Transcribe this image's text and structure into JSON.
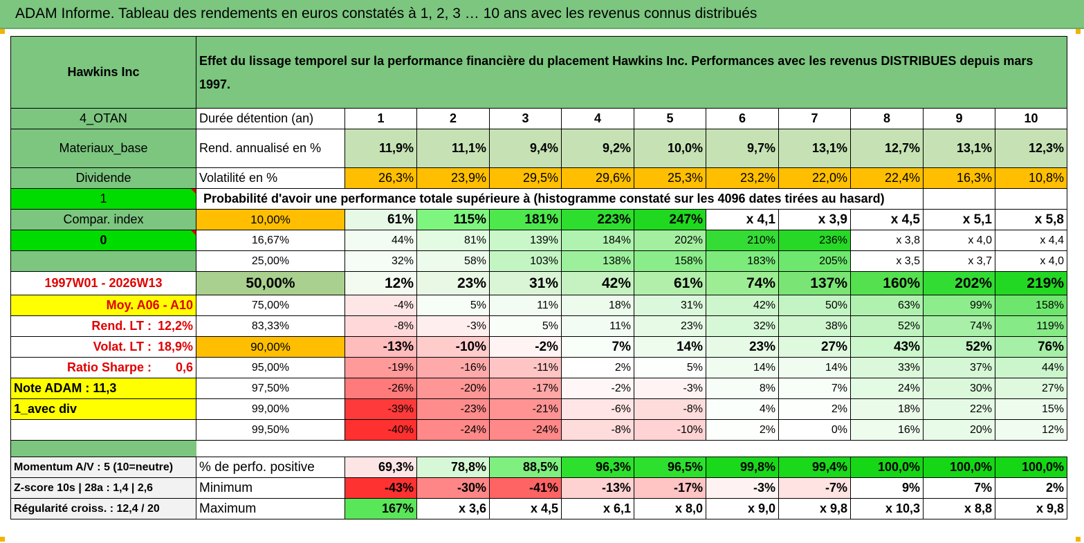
{
  "title": "ADAM Informe. Tableau des rendements en euros constatés à 1, 2, 3 … 10 ans avec les revenus connus distribués",
  "header": {
    "fund_name": "Hawkins Inc",
    "description": "Effet du lissage temporel sur la performance financière du placement Hawkins Inc. Performances avec les revenus DISTRIBUES depuis mars 1997."
  },
  "side": {
    "code": "4_OTAN",
    "sector": "Materiaux_base",
    "income_type": "Dividende",
    "flag_1": "1",
    "compar_index": "Compar. index",
    "flag_0": "0",
    "period": "1997W01 - 2026W13",
    "moy": "Moy. A06 - A10",
    "rend_lt_label": "Rend. LT :",
    "rend_lt_value": "12,2%",
    "volat_lt_label": "Volat. LT :",
    "volat_lt_value": "18,9%",
    "sharpe_label": "Ratio Sharpe :",
    "sharpe_value": "0,6",
    "note_adam": "Note ADAM : 11,3",
    "avec_div": "1_avec div",
    "momentum": "Momentum A/V : 5 (10=neutre)",
    "zscore": "Z-score 10s | 28a : 1,4 | 2,6",
    "regularite": "Régularité croiss. : 12,4 / 20"
  },
  "labels": {
    "duree": "Durée détention (an)",
    "rend": "Rend. annualisé en %",
    "vol": "Volatilité en %",
    "proba": "Probabilité d'avoir une performance totale supérieure à (histogramme constaté sur les 4096 dates tirées au hasard)",
    "perf_pos": "% de perfo. positive",
    "minimum": "Minimum",
    "maximum": "Maximum"
  },
  "years": [
    "1",
    "2",
    "3",
    "4",
    "5",
    "6",
    "7",
    "8",
    "9",
    "10"
  ],
  "rend_annualise": [
    "11,9%",
    "11,1%",
    "9,4%",
    "9,2%",
    "10,0%",
    "9,7%",
    "13,1%",
    "12,7%",
    "13,1%",
    "12,3%"
  ],
  "volatilite": [
    "26,3%",
    "23,9%",
    "29,5%",
    "29,6%",
    "25,3%",
    "23,2%",
    "22,0%",
    "22,4%",
    "16,3%",
    "10,8%"
  ],
  "prob_rows": [
    {
      "p": "10,00%",
      "v": [
        "61%",
        "115%",
        "181%",
        "223%",
        "247%",
        "x 4,1",
        "x 3,9",
        "x 4,5",
        "x 5,1",
        "x 5,8"
      ]
    },
    {
      "p": "16,67%",
      "v": [
        "44%",
        "81%",
        "139%",
        "184%",
        "202%",
        "210%",
        "236%",
        "x 3,8",
        "x 4,0",
        "x 4,4"
      ]
    },
    {
      "p": "25,00%",
      "v": [
        "32%",
        "58%",
        "103%",
        "138%",
        "158%",
        "183%",
        "205%",
        "x 3,5",
        "x 3,7",
        "x 4,0"
      ]
    },
    {
      "p": "50,00%",
      "v": [
        "12%",
        "23%",
        "31%",
        "42%",
        "61%",
        "74%",
        "137%",
        "160%",
        "202%",
        "219%"
      ]
    },
    {
      "p": "75,00%",
      "v": [
        "-4%",
        "5%",
        "11%",
        "18%",
        "31%",
        "42%",
        "50%",
        "63%",
        "99%",
        "158%"
      ]
    },
    {
      "p": "83,33%",
      "v": [
        "-8%",
        "-3%",
        "5%",
        "11%",
        "23%",
        "32%",
        "38%",
        "52%",
        "74%",
        "119%"
      ]
    },
    {
      "p": "90,00%",
      "v": [
        "-13%",
        "-10%",
        "-2%",
        "7%",
        "14%",
        "23%",
        "27%",
        "43%",
        "52%",
        "76%"
      ]
    },
    {
      "p": "95,00%",
      "v": [
        "-19%",
        "-16%",
        "-11%",
        "2%",
        "5%",
        "14%",
        "14%",
        "33%",
        "37%",
        "44%"
      ]
    },
    {
      "p": "97,50%",
      "v": [
        "-26%",
        "-20%",
        "-17%",
        "-2%",
        "-3%",
        "8%",
        "7%",
        "24%",
        "30%",
        "27%"
      ]
    },
    {
      "p": "99,00%",
      "v": [
        "-39%",
        "-23%",
        "-21%",
        "-6%",
        "-8%",
        "4%",
        "2%",
        "18%",
        "22%",
        "15%"
      ]
    },
    {
      "p": "99,50%",
      "v": [
        "-40%",
        "-24%",
        "-24%",
        "-8%",
        "-10%",
        "2%",
        "0%",
        "16%",
        "20%",
        "12%"
      ]
    }
  ],
  "perf_positive": [
    "69,3%",
    "78,8%",
    "88,5%",
    "96,3%",
    "96,5%",
    "99,8%",
    "99,4%",
    "100,0%",
    "100,0%",
    "100,0%"
  ],
  "minimum": [
    "-43%",
    "-30%",
    "-41%",
    "-13%",
    "-17%",
    "-3%",
    "-7%",
    "9%",
    "7%",
    "2%"
  ],
  "maximum": [
    "167%",
    "x 3,6",
    "x 4,5",
    "x 6,1",
    "x 8,0",
    "x 9,0",
    "x 9,8",
    "x 10,3",
    "x 8,8",
    "x 9,8"
  ],
  "colors": {
    "header_green": "#7cc67f",
    "bright_green": "#00dc00",
    "orange": "#ffbf00",
    "yellow": "#ffff00",
    "red_text": "#e00000"
  }
}
